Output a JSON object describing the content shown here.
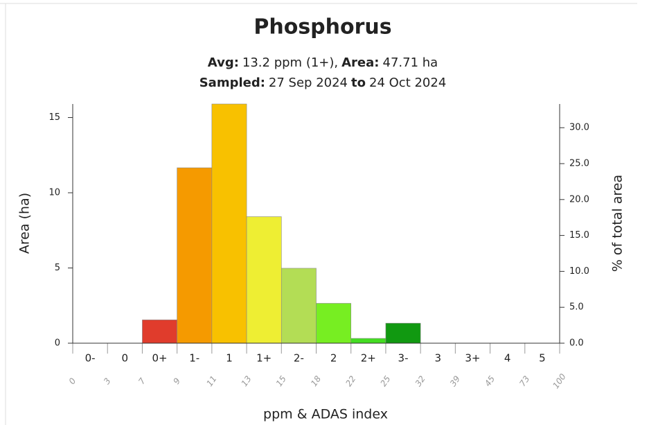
{
  "chart_data": {
    "type": "bar",
    "title": "Phosphorus",
    "subtitle": [
      [
        "Avg:",
        "13.2 ppm (1+),",
        "Area:",
        "47.71 ha"
      ],
      [
        "Sampled:",
        "27 Sep 2024",
        "to",
        "24 Oct 2024"
      ]
    ],
    "categories": [
      "0-",
      "0",
      "0+",
      "1-",
      "1",
      "1+",
      "2-",
      "2",
      "2+",
      "3-",
      "3",
      "3+",
      "4",
      "5"
    ],
    "edge_labels": [
      0,
      3,
      7,
      9,
      11,
      13,
      15,
      18,
      22,
      25,
      32,
      39,
      45,
      73,
      100
    ],
    "values": [
      0,
      0,
      1.55,
      11.66,
      15.9,
      8.41,
      4.98,
      2.65,
      0.32,
      1.33,
      0,
      0,
      0,
      0
    ],
    "colors": [
      "#cc2222",
      "#dd3333",
      "#e03c2c",
      "#f59a00",
      "#f8c100",
      "#eeee33",
      "#b3dd55",
      "#77ee22",
      "#44dd22",
      "#119911",
      "#118811",
      "#117711",
      "#116611",
      "#115511"
    ],
    "ylim": [
      0,
      15.9
    ],
    "yticks": [
      0,
      5,
      10,
      15
    ],
    "y2lim": [
      0,
      33.3
    ],
    "y2ticks": [
      {
        "value": 0,
        "label": "0.0"
      },
      {
        "value": 5,
        "label": "5.0"
      },
      {
        "value": 10,
        "label": "10.0"
      },
      {
        "value": 15,
        "label": "15.0"
      },
      {
        "value": 20,
        "label": "20.0"
      },
      {
        "value": 25,
        "label": "25.0"
      },
      {
        "value": 30,
        "label": "30.0"
      }
    ],
    "ylabel": "Area (ha)",
    "y2label": "% of total area",
    "xlabel": "ppm & ADAS index"
  }
}
